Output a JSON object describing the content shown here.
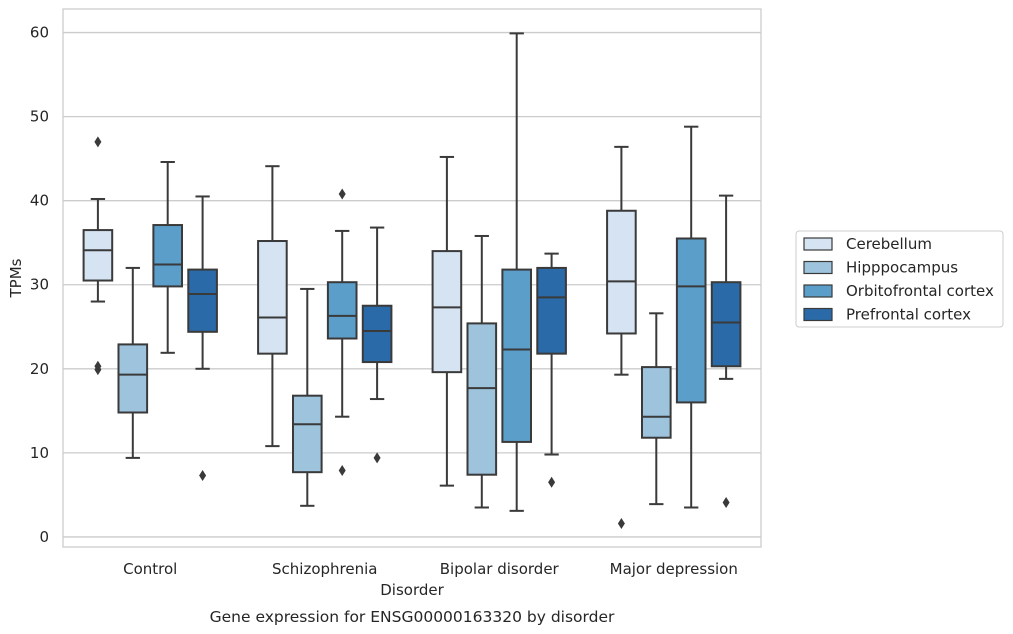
{
  "chart_data": {
    "type": "box",
    "xlabel": "Disorder",
    "ylabel": "TPMs",
    "caption": "Gene expression for ENSG00000163320 by disorder",
    "ylim": [
      -1.2,
      62.8
    ],
    "yticks": [
      0,
      10,
      20,
      30,
      40,
      50,
      60
    ],
    "grid": true,
    "legend_position": "right",
    "categories": [
      "Control",
      "Schizophrenia",
      "Bipolar disorder",
      "Major depression"
    ],
    "series": [
      {
        "name": "Cerebellum",
        "color": "#d5e3f2",
        "boxes": [
          {
            "whisker_low": 28.0,
            "q1": 30.5,
            "median": 34.1,
            "q3": 36.5,
            "whisker_high": 40.2,
            "outliers": [
              47.0,
              20.3,
              19.9
            ]
          },
          {
            "whisker_low": 10.8,
            "q1": 21.8,
            "median": 26.1,
            "q3": 35.2,
            "whisker_high": 44.1,
            "outliers": []
          },
          {
            "whisker_low": 6.1,
            "q1": 19.6,
            "median": 27.3,
            "q3": 34.0,
            "whisker_high": 45.2,
            "outliers": []
          },
          {
            "whisker_low": 19.3,
            "q1": 24.2,
            "median": 30.4,
            "q3": 38.8,
            "whisker_high": 46.4,
            "outliers": [
              1.6
            ]
          }
        ]
      },
      {
        "name": "Hipppocampus",
        "color": "#9dc3dd",
        "boxes": [
          {
            "whisker_low": 9.4,
            "q1": 14.8,
            "median": 19.3,
            "q3": 22.9,
            "whisker_high": 32.0,
            "outliers": []
          },
          {
            "whisker_low": 3.7,
            "q1": 7.7,
            "median": 13.4,
            "q3": 16.8,
            "whisker_high": 29.5,
            "outliers": []
          },
          {
            "whisker_low": 3.5,
            "q1": 7.4,
            "median": 17.7,
            "q3": 25.4,
            "whisker_high": 35.8,
            "outliers": []
          },
          {
            "whisker_low": 3.9,
            "q1": 11.8,
            "median": 14.3,
            "q3": 20.2,
            "whisker_high": 26.6,
            "outliers": []
          }
        ]
      },
      {
        "name": "Orbitofrontal cortex",
        "color": "#5b9ec9",
        "boxes": [
          {
            "whisker_low": 21.9,
            "q1": 29.8,
            "median": 32.4,
            "q3": 37.1,
            "whisker_high": 44.6,
            "outliers": []
          },
          {
            "whisker_low": 14.3,
            "q1": 23.6,
            "median": 26.3,
            "q3": 30.3,
            "whisker_high": 36.4,
            "outliers": [
              40.8,
              7.9
            ]
          },
          {
            "whisker_low": 3.1,
            "q1": 11.3,
            "median": 22.3,
            "q3": 31.8,
            "whisker_high": 59.9,
            "outliers": []
          },
          {
            "whisker_low": 3.5,
            "q1": 16.0,
            "median": 29.8,
            "q3": 35.5,
            "whisker_high": 48.8,
            "outliers": []
          }
        ]
      },
      {
        "name": "Prefrontal cortex",
        "color": "#2b6aa8",
        "boxes": [
          {
            "whisker_low": 20.0,
            "q1": 24.4,
            "median": 28.9,
            "q3": 31.8,
            "whisker_high": 40.5,
            "outliers": [
              7.3
            ]
          },
          {
            "whisker_low": 16.4,
            "q1": 20.8,
            "median": 24.5,
            "q3": 27.5,
            "whisker_high": 36.8,
            "outliers": [
              9.4
            ]
          },
          {
            "whisker_low": 9.8,
            "q1": 21.8,
            "median": 28.5,
            "q3": 32.0,
            "whisker_high": 33.7,
            "outliers": [
              6.5
            ]
          },
          {
            "whisker_low": 18.8,
            "q1": 20.3,
            "median": 25.5,
            "q3": 30.3,
            "whisker_high": 40.6,
            "outliers": [
              4.1
            ]
          }
        ]
      }
    ]
  }
}
